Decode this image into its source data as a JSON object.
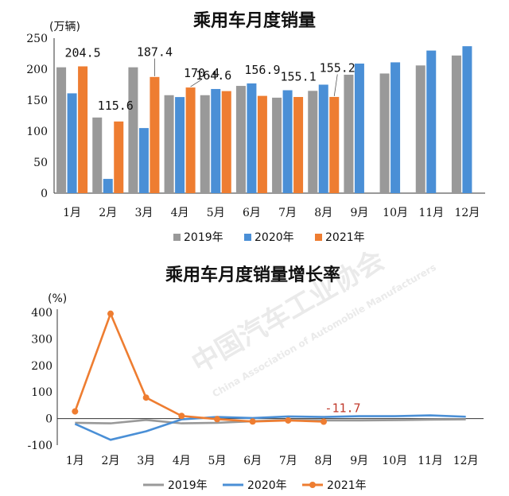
{
  "chart_data": [
    {
      "type": "bar",
      "title": "乘用车月度销量",
      "unit_label": "(万辆)",
      "categories": [
        "1月",
        "2月",
        "3月",
        "4月",
        "5月",
        "6月",
        "7月",
        "8月",
        "9月",
        "10月",
        "11月",
        "12月"
      ],
      "ylim": [
        0,
        250
      ],
      "yticks": [
        0,
        50,
        100,
        150,
        200,
        250
      ],
      "legend_position": "bottom",
      "series": [
        {
          "name": "2019年",
          "color": "#999999",
          "values": [
            203,
            122,
            203,
            158,
            158,
            173,
            154,
            165,
            191,
            193,
            206,
            222
          ]
        },
        {
          "name": "2020年",
          "color": "#4a8fd6",
          "values": [
            161,
            23,
            105,
            155,
            168,
            177,
            166,
            175,
            209,
            211,
            230,
            237
          ]
        },
        {
          "name": "2021年",
          "color": "#ee7d31",
          "values": [
            204.5,
            115.6,
            187.4,
            170.4,
            164.6,
            156.9,
            155.1,
            155.2,
            null,
            null,
            null,
            null
          ]
        }
      ],
      "data_labels": [
        {
          "category_index": 0,
          "text": "204.5"
        },
        {
          "category_index": 1,
          "text": "115.6"
        },
        {
          "category_index": 2,
          "text": "187.4"
        },
        {
          "category_index": 3,
          "text": "170.4"
        },
        {
          "category_index": 4,
          "text": "164.6"
        },
        {
          "category_index": 5,
          "text": "156.9"
        },
        {
          "category_index": 6,
          "text": "155.1"
        },
        {
          "category_index": 7,
          "text": "155.2"
        }
      ]
    },
    {
      "type": "line",
      "title": "乘用车月度销量增长率",
      "unit_label": "(%)",
      "categories": [
        "1月",
        "2月",
        "3月",
        "4月",
        "5月",
        "6月",
        "7月",
        "8月",
        "9月",
        "10月",
        "11月",
        "12月"
      ],
      "ylim": [
        -100,
        400
      ],
      "yticks": [
        -100,
        0,
        100,
        200,
        300,
        400
      ],
      "legend_position": "bottom",
      "series": [
        {
          "name": "2019年",
          "color": "#999999",
          "marker": false,
          "values": [
            -16,
            -18,
            -5,
            -18,
            -16,
            -10,
            -5,
            -7,
            -7,
            -6,
            -4,
            -3
          ]
        },
        {
          "name": "2020年",
          "color": "#4a8fd6",
          "marker": false,
          "values": [
            -20,
            -80,
            -48,
            -3,
            6,
            2,
            8,
            6,
            9,
            9,
            12,
            7
          ]
        },
        {
          "name": "2021年",
          "color": "#ee7d31",
          "marker": true,
          "values": [
            27,
            395,
            79,
            10,
            -2,
            -11,
            -7,
            -11.7,
            null,
            null,
            null,
            null
          ]
        }
      ],
      "annotation": {
        "text": "-11.7",
        "category_index": 7
      }
    }
  ],
  "watermark": {
    "text_cn": "中国汽车工业协会",
    "text_en": "China Association of Automobile Manufacturers"
  }
}
